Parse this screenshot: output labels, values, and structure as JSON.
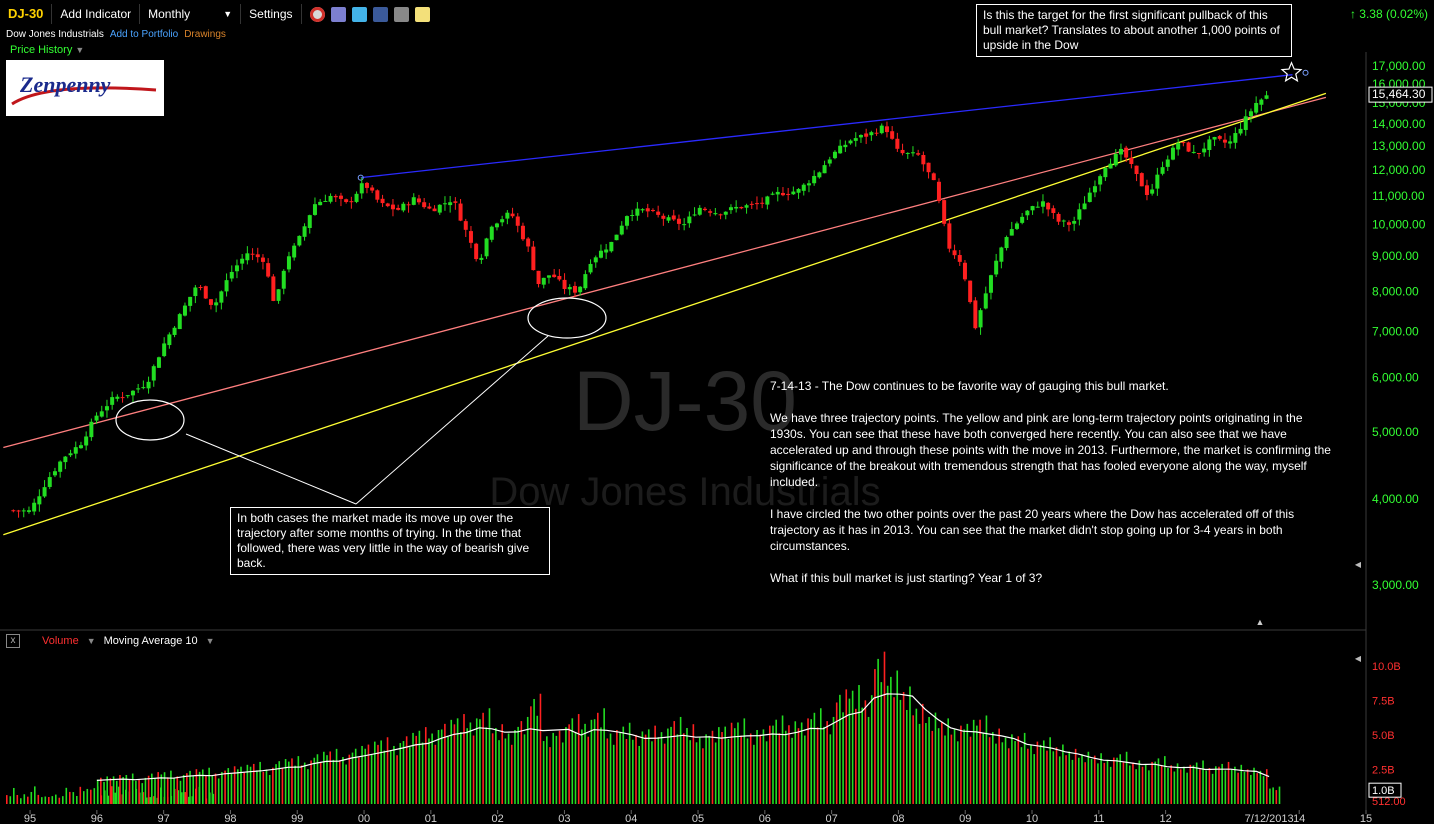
{
  "toolbar": {
    "symbol": "DJ-30",
    "add_indicator": "Add Indicator",
    "period": "Monthly",
    "settings": "Settings",
    "icons": [
      "alarm-clock-icon",
      "book-icon",
      "twitter-icon",
      "facebook-icon",
      "camera-icon",
      "note-icon"
    ],
    "change": "3.38 (0.02%)"
  },
  "subbar": {
    "name": "Dow Jones Industrials",
    "portfolio": "Add to Portfolio",
    "drawings": "Drawings"
  },
  "price_history_label": "Price History",
  "logo_text": "Zenpenny",
  "watermark": {
    "symbol": "DJ-30",
    "name": "Dow Jones Industrials"
  },
  "annotations": {
    "target": "Is this the target for the first significant pullback of this bull market? Translates to about another 1,000 points of upside in the Dow",
    "cases": "In both cases the market made its move up over the trajectory after some months of trying. In the time that followed, there was very little in the way of bearish give back."
  },
  "note": {
    "p1": "7-14-13 - The Dow continues to be favorite way of gauging this bull market.",
    "p2": "We have three trajectory points. The yellow and pink are long-term trajectory points originating in the 1930s. You can see that these have both converged here recently. You can also see that we have accelerated up and through these points with the move in 2013. Furthermore, the market is confirming the significance of the breakout with tremendous strength that has fooled everyone along the way, myself included.",
    "p3": "I have circled the two other points over the past 20 years where the Dow has accelerated off of this trajectory as it has in 2013. You can see that the market didn't stop going up for 3-4 years in both circumstances.",
    "p4": "What if this bull market is just starting? Year 1 of 3?"
  },
  "volume_header": {
    "volume": "Volume",
    "ma": "Moving Average 10"
  },
  "colors": {
    "up": "#22dd22",
    "down": "#ff2020",
    "axis_green": "#33ff33",
    "axis_red": "#ff3030",
    "blue_line": "#2a2aff",
    "pink_line": "#ff7f7f",
    "yellow_line": "#ffff33"
  },
  "chart_data": [
    {
      "type": "line",
      "series": [
        {
          "values": [
            [
              1994.75,
              3850
            ],
            [
              1995.0,
              3840
            ],
            [
              1995.25,
              4250
            ],
            [
              1995.5,
              4600
            ],
            [
              1995.75,
              4800
            ],
            [
              1996.0,
              5300
            ],
            [
              1996.25,
              5600
            ],
            [
              1996.5,
              5700
            ],
            [
              1996.75,
              5900
            ],
            [
              1997.0,
              6700
            ],
            [
              1997.25,
              7400
            ],
            [
              1997.5,
              8200
            ],
            [
              1997.75,
              7600
            ],
            [
              1998.0,
              8500
            ],
            [
              1998.25,
              9100
            ],
            [
              1998.5,
              8900
            ],
            [
              1998.67,
              7600
            ],
            [
              1998.83,
              8900
            ],
            [
              1999.0,
              9400
            ],
            [
              1999.25,
              10700
            ],
            [
              1999.5,
              11000
            ],
            [
              1999.75,
              10700
            ],
            [
              2000.0,
              11500
            ],
            [
              2000.25,
              10700
            ],
            [
              2000.5,
              10500
            ],
            [
              2000.75,
              10900
            ],
            [
              2001.0,
              10500
            ],
            [
              2001.33,
              10900
            ],
            [
              2001.58,
              9500
            ],
            [
              2001.72,
              8800
            ],
            [
              2001.9,
              10000
            ],
            [
              2002.2,
              10400
            ],
            [
              2002.45,
              9300
            ],
            [
              2002.6,
              8200
            ],
            [
              2002.8,
              8500
            ],
            [
              2003.0,
              8100
            ],
            [
              2003.2,
              8000
            ],
            [
              2003.4,
              8900
            ],
            [
              2003.7,
              9400
            ],
            [
              2003.95,
              10400
            ],
            [
              2004.2,
              10500
            ],
            [
              2004.5,
              10200
            ],
            [
              2004.8,
              10000
            ],
            [
              2005.0,
              10600
            ],
            [
              2005.3,
              10400
            ],
            [
              2005.6,
              10600
            ],
            [
              2005.9,
              10700
            ],
            [
              2006.2,
              11100
            ],
            [
              2006.5,
              11200
            ],
            [
              2006.8,
              11900
            ],
            [
              2007.0,
              12600
            ],
            [
              2007.3,
              13300
            ],
            [
              2007.55,
              13500
            ],
            [
              2007.8,
              13900
            ],
            [
              2008.0,
              12700
            ],
            [
              2008.3,
              12600
            ],
            [
              2008.55,
              11400
            ],
            [
              2008.75,
              9300
            ],
            [
              2008.95,
              8800
            ],
            [
              2009.15,
              7100
            ],
            [
              2009.4,
              8500
            ],
            [
              2009.6,
              9600
            ],
            [
              2009.9,
              10400
            ],
            [
              2010.15,
              10800
            ],
            [
              2010.4,
              10100
            ],
            [
              2010.6,
              10000
            ],
            [
              2010.9,
              11300
            ],
            [
              2011.1,
              12200
            ],
            [
              2011.35,
              12800
            ],
            [
              2011.6,
              11600
            ],
            [
              2011.75,
              11000
            ],
            [
              2011.95,
              12200
            ],
            [
              2012.2,
              13200
            ],
            [
              2012.45,
              12600
            ],
            [
              2012.7,
              13300
            ],
            [
              2012.95,
              13100
            ],
            [
              2013.15,
              14000
            ],
            [
              2013.35,
              15000
            ],
            [
              2013.55,
              15464
            ]
          ]
        }
      ],
      "xlim": [
        1994.55,
        2015.0
      ],
      "x_ticks": [
        "95",
        "96",
        "97",
        "98",
        "99",
        "00",
        "01",
        "02",
        "03",
        "04",
        "05",
        "06",
        "07",
        "08",
        "09",
        "10",
        "11",
        "12",
        "14",
        "15"
      ],
      "x_last_label": "7/12/2013",
      "y_scale": "log",
      "ylim": [
        2600,
        17800
      ],
      "y_ticks": [
        "3,000.00",
        "4,000.00",
        "5,000.00",
        "6,000.00",
        "7,000.00",
        "8,000.00",
        "9,000.00",
        "10,000.00",
        "11,000.00",
        "12,000.00",
        "13,000.00",
        "14,000.00",
        "15,000.00",
        "16,000.00",
        "17,000.00"
      ],
      "last_price_label": "15,464.30",
      "trendlines": [
        {
          "color": "blue",
          "from": [
            1999.95,
            11700
          ],
          "to": [
            2013.9,
            16500
          ]
        },
        {
          "color": "pink",
          "from": [
            1994.6,
            4750
          ],
          "to": [
            2014.4,
            15300
          ]
        },
        {
          "color": "yellow",
          "from": [
            1994.6,
            3550
          ],
          "to": [
            2014.4,
            15500
          ]
        }
      ]
    },
    {
      "type": "bar",
      "series": [
        {
          "name": "Volume"
        },
        {
          "name": "Moving Average 10"
        }
      ],
      "ylim": [
        0,
        11
      ],
      "y_ticks": [
        "512.00",
        "1.0B",
        "2.5B",
        "5.0B",
        "7.5B",
        "10.0B"
      ],
      "y_last_label": "1.0B",
      "volume_billions": [
        1.9,
        2.0,
        2.1,
        1.8,
        2.2,
        2.3,
        2.0,
        2.4,
        2.5,
        2.2,
        2.6,
        2.7,
        2.9,
        2.5,
        3.1,
        3.3,
        3.0,
        3.6,
        3.8,
        3.4,
        4.0,
        4.3,
        4.6,
        4.2,
        4.9,
        5.3,
        5.1,
        5.8,
        6.2,
        5.9,
        6.6,
        5.5,
        5.1,
        6.0,
        7.6,
        4.9,
        5.3,
        6.2,
        5.8,
        6.6,
        5.1,
        5.6,
        5.0,
        5.4,
        5.2,
        6.0,
        5.5,
        4.8,
        5.3,
        5.6,
        5.9,
        5.1,
        5.4,
        6.1,
        5.7,
        5.9,
        6.6,
        6.0,
        7.9,
        8.2,
        7.5,
        10.5,
        9.2,
        8.1,
        6.9,
        6.3,
        5.9,
        5.4,
        5.8,
        6.1,
        5.2,
        4.8,
        4.9,
        4.3,
        4.6,
        4.1,
        3.8,
        3.6,
        3.5,
        3.2,
        3.6,
        3.0,
        2.9,
        3.3,
        2.8,
        2.7,
        3.0,
        2.6,
        2.9,
        2.7,
        2.5,
        2.4,
        1.2
      ]
    }
  ]
}
